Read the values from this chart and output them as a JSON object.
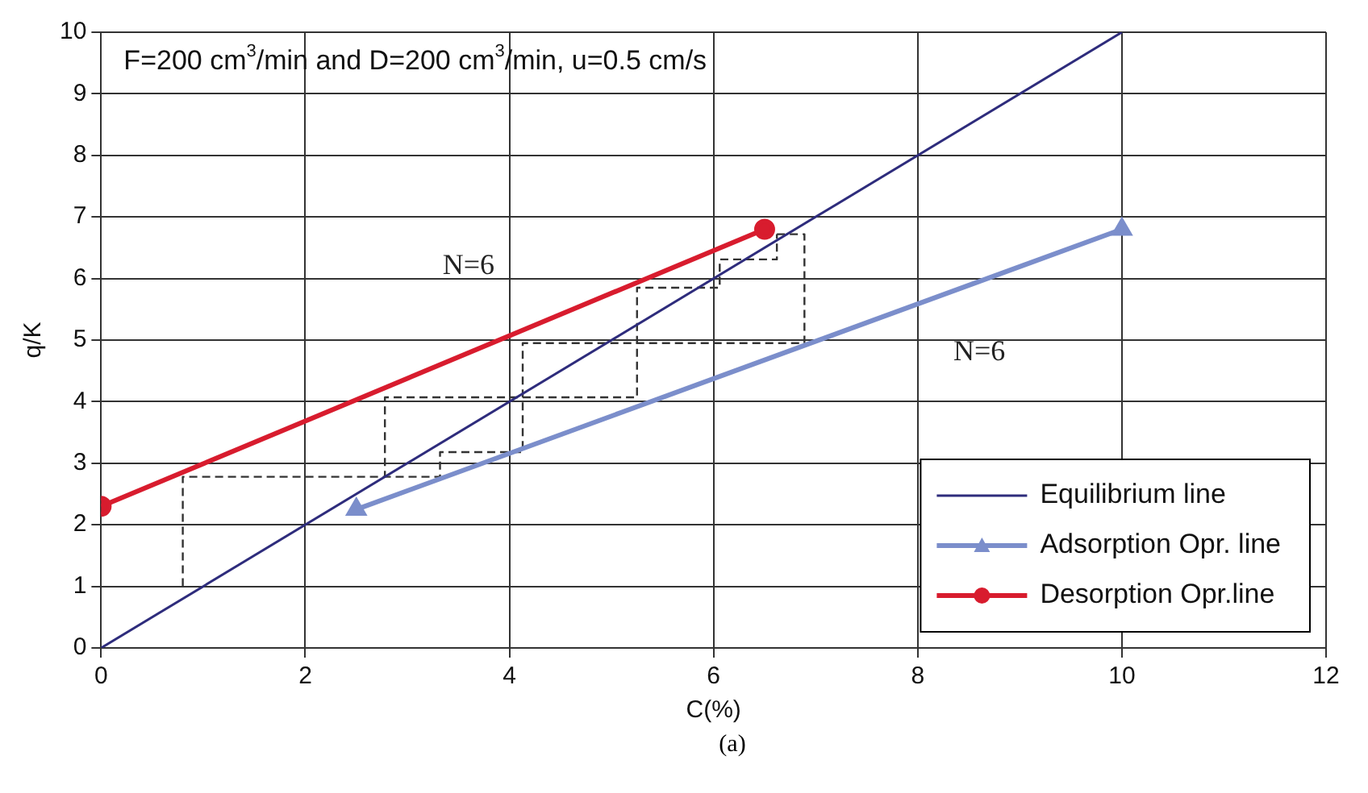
{
  "chart_data": {
    "type": "line",
    "xlabel": "C(%)",
    "ylabel": "q/K",
    "xlim": [
      0,
      12
    ],
    "xticks": [
      0,
      2,
      4,
      6,
      8,
      10,
      12
    ],
    "ylim": [
      0,
      10
    ],
    "yticks": [
      0,
      1,
      2,
      3,
      4,
      5,
      6,
      7,
      8,
      9,
      10
    ],
    "grid": true,
    "legend": "bottom right",
    "series": [
      {
        "name": "Equilibrium line",
        "color": "#2e2c7c",
        "x": [
          0,
          10
        ],
        "values": [
          0,
          10
        ],
        "marker": "none"
      },
      {
        "name": "Adsorption Opr. line",
        "color": "#7b8ecb",
        "x": [
          2.5,
          10
        ],
        "values": [
          2.25,
          6.8
        ],
        "marker": "triangle"
      },
      {
        "name": "Desorption Opr.line",
        "color": "#d81c2e",
        "x": [
          0,
          6.5
        ],
        "values": [
          2.3,
          6.8
        ],
        "marker": "circle"
      },
      {
        "color": "#333333",
        "line_style": "dashed",
        "marker": "none",
        "x": [
          0.8,
          0.8,
          2.78,
          2.78,
          5.25,
          5.25,
          6.06,
          6.06,
          6.62,
          6.62
        ],
        "values": [
          1,
          2.78,
          2.78,
          4.07,
          4.07,
          5.85,
          5.85,
          6.31,
          6.31,
          6.72
        ]
      },
      {
        "color": "#333333",
        "line_style": "dashed",
        "marker": "none",
        "x": [
          6.62,
          6.89,
          6.89,
          4.13,
          4.13,
          3.32,
          3.32,
          2.78
        ],
        "values": [
          6.72,
          6.72,
          4.95,
          4.95,
          3.18,
          3.18,
          2.78,
          2.78
        ]
      }
    ],
    "annotations": [
      "F=200 cm$^{3}$/min and D=200 cm$^{3}$/min, u=0.5 cm/s",
      "N=6",
      "N=6",
      "(a)"
    ]
  }
}
